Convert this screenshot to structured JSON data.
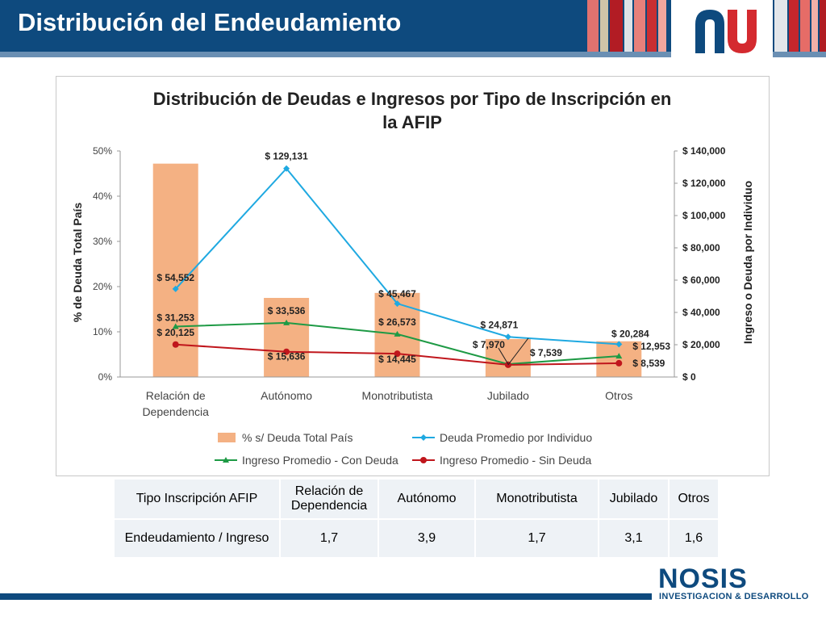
{
  "slide": {
    "title": "Distribución del Endeudamiento"
  },
  "brand": {
    "logo_text": "NOSIS",
    "logo_subtitle": "INVESTIGACION & DESARROLLO",
    "primary_color": "#0e4a7e",
    "accent_red": "#d42a2f"
  },
  "chart_data": {
    "type": "bar",
    "title": "Distribución de Deudas e Ingresos por Tipo de Inscripción en la AFIP",
    "title_lines": [
      "Distribución de Deudas e Ingresos por Tipo de Inscripción en",
      "la AFIP"
    ],
    "categories": [
      [
        "Relación de",
        "Dependencia"
      ],
      [
        "Autónomo"
      ],
      [
        "Monotributista"
      ],
      [
        "Jubilado"
      ],
      [
        "Otros"
      ]
    ],
    "ylabel_left": "% de Deuda Total País",
    "ylabel_right": "Ingreso o Deuda por Individuo",
    "ylim_left": [
      0,
      50
    ],
    "ylim_right": [
      0,
      140000
    ],
    "left_ticks": [
      "0%",
      "10%",
      "20%",
      "30%",
      "40%",
      "50%"
    ],
    "right_ticks": [
      "$ 0",
      "$ 20,000",
      "$ 40,000",
      "$ 60,000",
      "$ 80,000",
      "$ 100,000",
      "$ 120,000",
      "$ 140,000"
    ],
    "grid": false,
    "legend_position": "bottom",
    "bar_series": {
      "name": "% s/ Deuda Total País",
      "color": "#f4b183",
      "values": [
        47.2,
        17.5,
        18.6,
        8.4,
        7.9
      ]
    },
    "line_series": [
      {
        "name": "Deuda Promedio por Individuo",
        "color": "#1fa9e1",
        "marker": "diamond",
        "values": [
          54552,
          129131,
          45467,
          24871,
          20284
        ],
        "labels": [
          "$ 54,552",
          "$ 129,131",
          "$ 45,467",
          "$ 24,871",
          "$ 20,284"
        ]
      },
      {
        "name": "Ingreso Promedio - Con Deuda",
        "color": "#1e9a45",
        "marker": "triangle",
        "values": [
          31253,
          33536,
          26573,
          7970,
          12953
        ],
        "labels": [
          "$ 31,253",
          "$ 33,536",
          "$ 26,573",
          "$ 7,970",
          "$ 12,953"
        ]
      },
      {
        "name": "Ingreso Promedio - Sin Deuda",
        "color": "#c0161c",
        "marker": "circle",
        "values": [
          20125,
          15636,
          14445,
          7539,
          8539
        ],
        "labels": [
          "$ 20,125",
          "$ 15,636",
          "$ 14,445",
          "$ 7,539",
          "$ 8,539"
        ]
      }
    ]
  },
  "table": {
    "header_label": "Tipo Inscripción AFIP",
    "row_label": "Endeudamiento / Ingreso",
    "categories": [
      [
        "Relación de",
        "Dependencia"
      ],
      [
        "Autónomo"
      ],
      [
        "Monotributista"
      ],
      [
        "Jubilado"
      ],
      [
        "Otros"
      ]
    ],
    "values": [
      "1,7",
      "3,9",
      "1,7",
      "3,1",
      "1,6"
    ]
  }
}
